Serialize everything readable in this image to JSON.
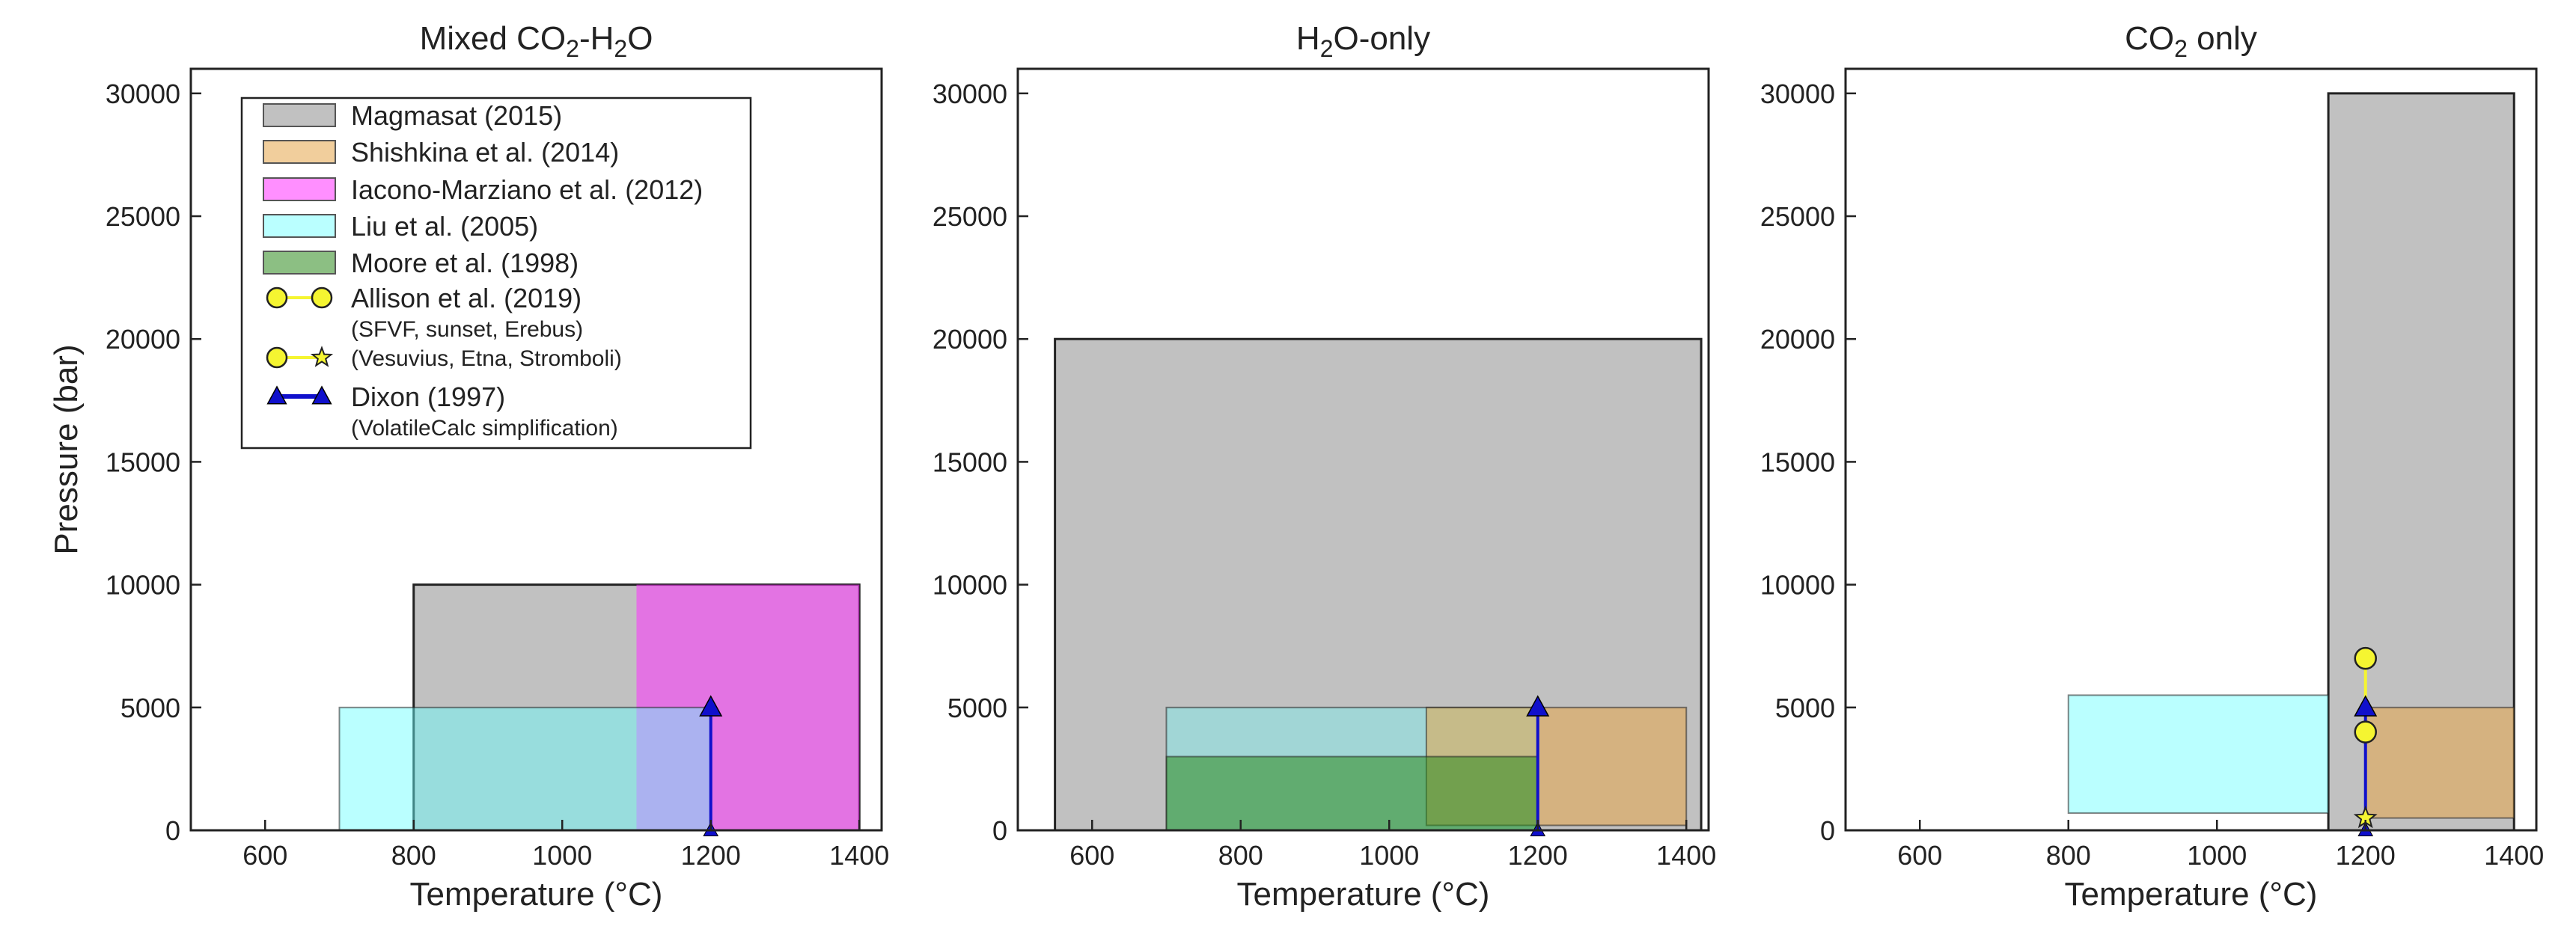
{
  "colors": {
    "magmasat": "#a6a6a6",
    "shishkina": "#e6a64a",
    "iacono": "#ff33ff",
    "liu": "#66ffff",
    "moore": "#2e8b1e",
    "allison_line": "#f5f531",
    "allison_marker": "#f5f531",
    "dixon": "#1010cc"
  },
  "legend": {
    "items": [
      {
        "key": "magmasat",
        "label": "Magmasat (2015)",
        "sub": ""
      },
      {
        "key": "shishkina",
        "label": "Shishkina et al. (2014)",
        "sub": ""
      },
      {
        "key": "iacono",
        "label": "Iacono-Marziano et al. (2012)",
        "sub": ""
      },
      {
        "key": "liu",
        "label": "Liu et al. (2005)",
        "sub": ""
      },
      {
        "key": "moore",
        "label": "Moore et al. (1998)",
        "sub": ""
      },
      {
        "key": "allison_circle",
        "label": "Allison et al. (2019)",
        "sub": "(SFVF, sunset, Erebus)"
      },
      {
        "key": "allison_star",
        "label": "",
        "sub": "(Vesuvius, Etna, Stromboli)"
      },
      {
        "key": "dixon",
        "label": "Dixon (1997)",
        "sub": "(VolatileCalc simplification)"
      }
    ]
  },
  "chart_data": [
    {
      "type": "bar",
      "title_parts": [
        "Mixed CO",
        "2",
        "-H",
        "2",
        "O"
      ],
      "xlabel": "Temperature (°C)",
      "ylabel": "Pressure (bar)",
      "xlim": [
        500,
        1430
      ],
      "ylim": [
        0,
        31000
      ],
      "xticks": [
        "600",
        "800",
        "1000",
        "1200",
        "1400"
      ],
      "yticks": [
        "0",
        "5000",
        "10000",
        "15000",
        "20000",
        "25000",
        "30000"
      ],
      "legend_position": "upper-left",
      "ranges": [
        {
          "model": "magmasat",
          "T": [
            800,
            1400
          ],
          "P": [
            0,
            10000
          ],
          "alpha": 0.7,
          "edge": true
        },
        {
          "model": "iacono",
          "T": [
            1100,
            1400
          ],
          "P": [
            0,
            10000
          ],
          "alpha": 0.55,
          "edge": false
        },
        {
          "model": "liu",
          "T": [
            700,
            1200
          ],
          "P": [
            0,
            5000
          ],
          "alpha": 0.45,
          "edge": true
        }
      ],
      "dixon": {
        "T": 1200,
        "P": [
          0,
          5000
        ]
      },
      "allison_points": []
    },
    {
      "type": "bar",
      "title_parts": [
        "H",
        "2",
        "O-only"
      ],
      "xlabel": "Temperature (°C)",
      "ylabel": "",
      "xlim": [
        500,
        1430
      ],
      "ylim": [
        0,
        31000
      ],
      "xticks": [
        "600",
        "800",
        "1000",
        "1200",
        "1400"
      ],
      "yticks": [
        "0",
        "5000",
        "10000",
        "15000",
        "20000",
        "25000",
        "30000"
      ],
      "ranges": [
        {
          "model": "magmasat",
          "T": [
            550,
            1420
          ],
          "P": [
            0,
            20000
          ],
          "alpha": 0.7,
          "edge": true
        },
        {
          "model": "liu",
          "T": [
            700,
            1200
          ],
          "P": [
            0,
            5000
          ],
          "alpha": 0.35,
          "edge": true
        },
        {
          "model": "shishkina",
          "T": [
            1050,
            1400
          ],
          "P": [
            200,
            5000
          ],
          "alpha": 0.55,
          "edge": true
        },
        {
          "model": "moore",
          "T": [
            700,
            1200
          ],
          "P": [
            0,
            3000
          ],
          "alpha": 0.55,
          "edge": true
        }
      ],
      "dixon": {
        "T": 1200,
        "P": [
          0,
          5000
        ]
      },
      "allison_points": []
    },
    {
      "type": "bar",
      "title_parts": [
        "CO",
        "2",
        " only"
      ],
      "xlabel": "Temperature (°C)",
      "ylabel": "",
      "xlim": [
        500,
        1430
      ],
      "ylim": [
        0,
        31000
      ],
      "xticks": [
        "600",
        "800",
        "1000",
        "1200",
        "1400"
      ],
      "yticks": [
        "0",
        "5000",
        "10000",
        "15000",
        "20000",
        "25000",
        "30000"
      ],
      "ranges": [
        {
          "model": "magmasat",
          "T": [
            1150,
            1400
          ],
          "P": [
            0,
            30000
          ],
          "alpha": 0.7,
          "edge": true
        },
        {
          "model": "liu",
          "T": [
            800,
            1150
          ],
          "P": [
            700,
            5500
          ],
          "alpha": 0.45,
          "edge": true
        },
        {
          "model": "shishkina",
          "T": [
            1200,
            1400
          ],
          "P": [
            500,
            5000
          ],
          "alpha": 0.55,
          "edge": true
        }
      ],
      "dixon": {
        "T": 1200,
        "P": [
          0,
          5000
        ]
      },
      "allison_points": [
        {
          "T": 1200,
          "P": 7000,
          "marker": "circle"
        },
        {
          "T": 1200,
          "P": 4000,
          "marker": "circle"
        },
        {
          "T": 1200,
          "P": 500,
          "marker": "star"
        }
      ],
      "allison_line": {
        "T": 1200,
        "P": [
          4000,
          7000
        ]
      }
    }
  ]
}
